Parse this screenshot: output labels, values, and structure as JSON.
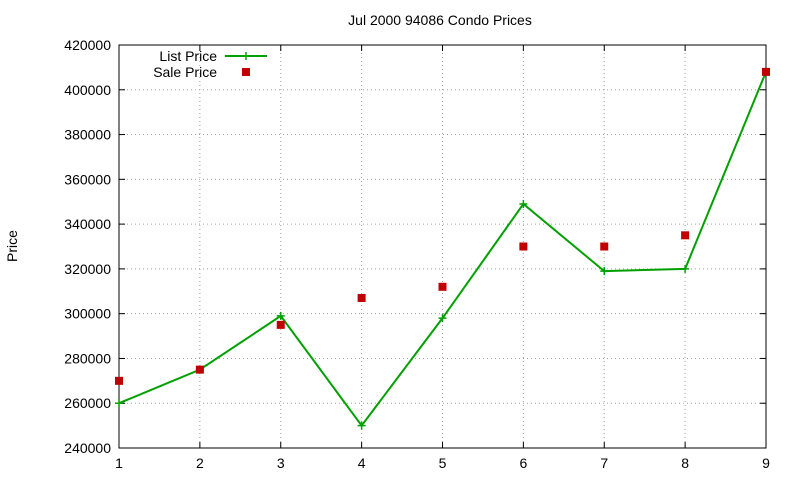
{
  "chart_data": {
    "type": "line",
    "title": "Jul 2000 94086 Condo Prices",
    "xlabel": "",
    "ylabel": "Price",
    "x": [
      1,
      2,
      3,
      4,
      5,
      6,
      7,
      8,
      9
    ],
    "xlim": [
      1,
      9
    ],
    "ylim": [
      240000,
      420000
    ],
    "yticks": [
      240000,
      260000,
      280000,
      300000,
      320000,
      340000,
      360000,
      380000,
      400000,
      420000
    ],
    "xticks": [
      1,
      2,
      3,
      4,
      5,
      6,
      7,
      8,
      9
    ],
    "grid": true,
    "legend_position": "top-left",
    "series": [
      {
        "name": "List Price",
        "style": "line+plus",
        "color": "#00a000",
        "values": [
          260000,
          275000,
          299000,
          250000,
          298000,
          349000,
          319000,
          320000,
          408000
        ]
      },
      {
        "name": "Sale Price",
        "style": "square",
        "color": "#c00000",
        "values": [
          270000,
          275000,
          295000,
          307000,
          312000,
          330000,
          330000,
          335000,
          408000
        ]
      }
    ]
  }
}
